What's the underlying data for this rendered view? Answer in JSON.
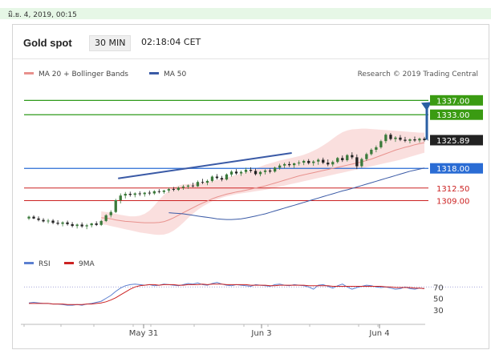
{
  "date_bar": "มิ.ย. 4, 2019, 00:15",
  "header": {
    "title": "Gold spot",
    "interval": "30 MIN",
    "time": "02:18:04 CET"
  },
  "legend": [
    {
      "label": "MA 20 + Bollinger Bands",
      "color": "#e8918d"
    },
    {
      "label": "MA 50",
      "color": "#3a5aa6"
    }
  ],
  "credit": "Research © 2019 Trading Central",
  "chart_data": [
    {
      "type": "candlestick",
      "title": "Gold spot",
      "price_range": [
        1295,
        1342
      ],
      "current_price": 1325.89,
      "levels": [
        {
          "value": 1337.0,
          "label": "1337.00",
          "kind": "resistance",
          "color": "#2e9a1a"
        },
        {
          "value": 1333.0,
          "label": "1333.00",
          "kind": "resistance",
          "color": "#2e9a1a"
        },
        {
          "value": 1318.0,
          "label": "1318.00",
          "kind": "pivot",
          "color": "#2a6cd4"
        },
        {
          "value": 1312.5,
          "label": "1312.50",
          "kind": "support",
          "color": "#cc2222"
        },
        {
          "value": 1309.0,
          "label": "1309.00",
          "kind": "support",
          "color": "#cc2222"
        }
      ],
      "x_ticks": [
        "May 31",
        "Jun 3",
        "Jun 4"
      ],
      "colors": {
        "up": "#3b7a3b",
        "down": "#222222",
        "bb_fill": "#f9d9d8",
        "ma20": "#e8918d",
        "ma50": "#3a5aa6",
        "arrow": "#2a5fa3"
      },
      "candles": [
        [
          1304.0,
          1304.8,
          1303.6,
          1304.5
        ],
        [
          1304.5,
          1304.9,
          1303.8,
          1304.0
        ],
        [
          1304.0,
          1304.6,
          1303.2,
          1303.6
        ],
        [
          1303.6,
          1304.1,
          1302.9,
          1303.2
        ],
        [
          1303.2,
          1303.9,
          1302.6,
          1303.4
        ],
        [
          1303.4,
          1303.8,
          1302.4,
          1302.8
        ],
        [
          1302.8,
          1303.5,
          1302.1,
          1302.5
        ],
        [
          1302.5,
          1303.2,
          1301.8,
          1302.9
        ],
        [
          1302.9,
          1303.4,
          1302.0,
          1302.4
        ],
        [
          1302.4,
          1303.0,
          1301.5,
          1301.9
        ],
        [
          1301.9,
          1302.6,
          1301.2,
          1302.3
        ],
        [
          1302.3,
          1302.9,
          1301.4,
          1301.8
        ],
        [
          1301.8,
          1302.5,
          1301.0,
          1302.1
        ],
        [
          1302.1,
          1302.8,
          1301.5,
          1302.6
        ],
        [
          1302.6,
          1303.2,
          1301.9,
          1302.2
        ],
        [
          1302.2,
          1303.6,
          1301.9,
          1303.3
        ],
        [
          1303.3,
          1305.2,
          1303.0,
          1304.9
        ],
        [
          1304.9,
          1306.3,
          1304.3,
          1305.8
        ],
        [
          1305.8,
          1309.5,
          1305.5,
          1309.1
        ],
        [
          1309.1,
          1311.0,
          1308.2,
          1310.4
        ],
        [
          1310.4,
          1311.4,
          1309.6,
          1310.9
        ],
        [
          1310.9,
          1311.5,
          1310.1,
          1310.6
        ],
        [
          1310.6,
          1311.3,
          1309.9,
          1311.0
        ],
        [
          1311.0,
          1311.6,
          1310.3,
          1310.8
        ],
        [
          1310.8,
          1311.4,
          1310.1,
          1311.2
        ],
        [
          1311.2,
          1311.8,
          1310.5,
          1311.0
        ],
        [
          1311.0,
          1311.9,
          1310.6,
          1311.6
        ],
        [
          1311.6,
          1312.2,
          1311.0,
          1311.4
        ],
        [
          1311.4,
          1312.0,
          1310.9,
          1311.8
        ],
        [
          1311.8,
          1312.6,
          1311.2,
          1312.2
        ],
        [
          1312.2,
          1312.8,
          1311.6,
          1312.0
        ],
        [
          1312.0,
          1312.9,
          1311.7,
          1312.6
        ],
        [
          1312.6,
          1313.4,
          1312.0,
          1312.9
        ],
        [
          1312.9,
          1313.5,
          1312.3,
          1313.2
        ],
        [
          1313.2,
          1314.0,
          1312.7,
          1313.0
        ],
        [
          1313.0,
          1314.6,
          1312.8,
          1314.2
        ],
        [
          1314.2,
          1315.1,
          1313.6,
          1314.0
        ],
        [
          1314.0,
          1314.9,
          1313.3,
          1314.5
        ],
        [
          1314.5,
          1316.0,
          1314.1,
          1315.7
        ],
        [
          1315.7,
          1316.4,
          1314.9,
          1315.3
        ],
        [
          1315.3,
          1315.9,
          1314.4,
          1314.9
        ],
        [
          1314.9,
          1316.6,
          1314.6,
          1316.3
        ],
        [
          1316.3,
          1317.5,
          1315.7,
          1317.1
        ],
        [
          1317.1,
          1317.8,
          1316.2,
          1316.6
        ],
        [
          1316.6,
          1317.4,
          1315.9,
          1317.0
        ],
        [
          1317.0,
          1318.2,
          1316.5,
          1317.6
        ],
        [
          1317.6,
          1318.3,
          1316.8,
          1317.3
        ],
        [
          1317.3,
          1317.9,
          1316.0,
          1316.4
        ],
        [
          1316.4,
          1317.3,
          1315.8,
          1317.0
        ],
        [
          1317.0,
          1317.8,
          1316.3,
          1317.4
        ],
        [
          1317.4,
          1318.0,
          1316.6,
          1317.1
        ],
        [
          1317.1,
          1318.5,
          1316.8,
          1318.2
        ],
        [
          1318.2,
          1319.3,
          1317.6,
          1318.8
        ],
        [
          1318.8,
          1319.6,
          1318.0,
          1319.2
        ],
        [
          1319.2,
          1319.9,
          1318.4,
          1318.9
        ],
        [
          1318.9,
          1319.6,
          1318.1,
          1319.4
        ],
        [
          1319.4,
          1320.2,
          1318.8,
          1319.6
        ],
        [
          1319.6,
          1320.4,
          1318.9,
          1320.1
        ],
        [
          1320.1,
          1320.6,
          1319.1,
          1319.5
        ],
        [
          1319.5,
          1320.3,
          1318.7,
          1319.9
        ],
        [
          1319.9,
          1320.8,
          1319.0,
          1320.4
        ],
        [
          1320.4,
          1321.0,
          1319.2,
          1319.6
        ],
        [
          1319.6,
          1320.5,
          1318.6,
          1319.1
        ],
        [
          1319.1,
          1320.2,
          1318.5,
          1319.8
        ],
        [
          1319.8,
          1321.2,
          1319.4,
          1320.9
        ],
        [
          1320.9,
          1321.6,
          1319.8,
          1320.3
        ],
        [
          1320.3,
          1322.0,
          1319.9,
          1321.7
        ],
        [
          1321.7,
          1322.5,
          1320.6,
          1321.1
        ],
        [
          1321.1,
          1321.9,
          1317.8,
          1318.6
        ],
        [
          1318.6,
          1321.0,
          1318.2,
          1320.6
        ],
        [
          1320.6,
          1322.4,
          1320.1,
          1322.0
        ],
        [
          1322.0,
          1323.6,
          1321.6,
          1323.2
        ],
        [
          1323.2,
          1324.4,
          1322.5,
          1323.9
        ],
        [
          1323.9,
          1326.0,
          1323.5,
          1325.6
        ],
        [
          1325.6,
          1327.8,
          1325.0,
          1327.4
        ],
        [
          1327.4,
          1327.9,
          1325.8,
          1326.2
        ],
        [
          1326.2,
          1327.0,
          1325.4,
          1326.6
        ],
        [
          1326.6,
          1327.3,
          1325.6,
          1326.0
        ],
        [
          1326.0,
          1326.8,
          1325.3,
          1325.7
        ],
        [
          1325.7,
          1326.4,
          1325.0,
          1326.1
        ],
        [
          1326.1,
          1326.9,
          1325.4,
          1325.8
        ],
        [
          1325.8,
          1326.6,
          1325.2,
          1326.3
        ],
        [
          1326.3,
          1326.8,
          1325.5,
          1325.89
        ]
      ],
      "ma20": [
        1304.2,
        1304.1,
        1303.9,
        1303.6,
        1303.4,
        1303.2,
        1303.1,
        1303.0,
        1302.9,
        1302.8,
        1302.8,
        1302.8,
        1302.9,
        1303.1,
        1303.6,
        1304.2,
        1304.9,
        1305.6,
        1306.3,
        1307.0,
        1307.7,
        1308.3,
        1308.9,
        1309.5,
        1310.0,
        1310.4,
        1310.8,
        1311.1,
        1311.4,
        1311.6,
        1311.9,
        1312.2,
        1312.5,
        1312.8,
        1313.1,
        1313.5,
        1313.9,
        1314.3,
        1314.7,
        1315.1,
        1315.5,
        1315.9,
        1316.2,
        1316.5,
        1316.8,
        1317.1,
        1317.4,
        1317.7,
        1318.0,
        1318.3,
        1318.6,
        1318.9,
        1319.2,
        1319.5,
        1319.8,
        1320.2,
        1320.6,
        1321.1,
        1321.6,
        1322.1,
        1322.6,
        1323.1,
        1323.5,
        1323.9,
        1324.2,
        1324.6,
        1324.9,
        1325.2
      ],
      "bb_upper": [
        1306.0,
        1305.8,
        1305.6,
        1305.3,
        1305.0,
        1304.8,
        1304.6,
        1304.6,
        1304.8,
        1305.3,
        1306.2,
        1307.6,
        1309.2,
        1310.6,
        1311.8,
        1312.7,
        1313.2,
        1313.5,
        1313.6,
        1313.7,
        1313.8,
        1314.0,
        1314.2,
        1314.5,
        1314.8,
        1315.1,
        1315.4,
        1315.8,
        1316.2,
        1316.6,
        1317.0,
        1317.5,
        1318.0,
        1318.5,
        1319.0,
        1319.4,
        1319.8,
        1320.2,
        1320.5,
        1320.8,
        1321.1,
        1321.4,
        1321.8,
        1322.3,
        1322.9,
        1323.6,
        1324.4,
        1325.3,
        1326.3,
        1327.3,
        1328.1,
        1328.6,
        1328.9,
        1329.0,
        1329.1,
        1329.1,
        1329.0,
        1328.9,
        1328.8,
        1328.7,
        1328.6,
        1328.5,
        1328.4,
        1328.3,
        1328.2,
        1328.1,
        1328.0,
        1328.0
      ],
      "bb_lower": [
        1302.4,
        1302.2,
        1301.9,
        1301.6,
        1301.3,
        1301.0,
        1300.7,
        1300.4,
        1300.1,
        1299.9,
        1299.7,
        1299.5,
        1299.4,
        1299.5,
        1299.9,
        1300.6,
        1301.6,
        1302.8,
        1304.1,
        1305.3,
        1306.4,
        1307.3,
        1308.1,
        1308.8,
        1309.3,
        1309.8,
        1310.2,
        1310.5,
        1310.8,
        1311.0,
        1311.2,
        1311.4,
        1311.6,
        1311.8,
        1312.0,
        1312.3,
        1312.6,
        1312.9,
        1313.2,
        1313.5,
        1313.8,
        1314.1,
        1314.4,
        1314.7,
        1315.0,
        1315.3,
        1315.6,
        1315.9,
        1316.2,
        1316.5,
        1316.8,
        1317.1,
        1317.4,
        1317.7,
        1318.0,
        1318.3,
        1318.6,
        1318.9,
        1319.2,
        1319.5,
        1319.8,
        1320.1,
        1320.4,
        1320.8,
        1321.2,
        1321.6,
        1322.0,
        1322.4
      ],
      "ma50": [
        1305.6,
        1305.5,
        1305.4,
        1305.3,
        1305.1,
        1304.9,
        1304.7,
        1304.5,
        1304.3,
        1304.1,
        1303.9,
        1303.8,
        1303.7,
        1303.7,
        1303.8,
        1303.9,
        1304.1,
        1304.4,
        1304.7,
        1305.0,
        1305.3,
        1305.7,
        1306.1,
        1306.5,
        1306.9,
        1307.3,
        1307.7,
        1308.1,
        1308.5,
        1308.9,
        1309.3,
        1309.7,
        1310.1,
        1310.5,
        1310.9,
        1311.3,
        1311.7,
        1312.0,
        1312.4,
        1312.8,
        1313.2,
        1313.6,
        1314.0,
        1314.4,
        1314.8,
        1315.2,
        1315.6,
        1316.0,
        1316.4,
        1316.8,
        1317.2,
        1317.5,
        1317.8,
        1318.1
      ],
      "trend_line": [
        [
          18.5,
          1315.2
        ],
        [
          54.5,
          1322.3
        ],
        [
          56.0,
          1326.0
        ],
        [
          56.0,
          1326.0
        ]
      ],
      "rsi": {
        "ylim": [
          10,
          90
        ],
        "ticks": [
          70,
          50,
          30
        ],
        "overbought": 70,
        "values": [
          42,
          43,
          42,
          41,
          41,
          40,
          40,
          39,
          38,
          38,
          39,
          38,
          40,
          41,
          43,
          45,
          50,
          55,
          62,
          68,
          72,
          74,
          75,
          74,
          73,
          74,
          72,
          73,
          75,
          74,
          73,
          72,
          74,
          76,
          75,
          77,
          74,
          73,
          76,
          78,
          75,
          73,
          72,
          74,
          73,
          72,
          71,
          74,
          73,
          72,
          71,
          74,
          75,
          73,
          72,
          74,
          73,
          72,
          70,
          66,
          73,
          74,
          71,
          68,
          72,
          75,
          70,
          66,
          69,
          71,
          73,
          72,
          70,
          69,
          70,
          68,
          66,
          67,
          70,
          67,
          66,
          68,
          67
        ],
        "ma9": [
          41,
          41,
          41,
          41,
          41,
          40,
          40,
          40,
          39,
          39,
          39,
          39,
          40,
          40,
          41,
          42,
          44,
          47,
          51,
          56,
          61,
          66,
          70,
          72,
          73,
          74,
          74,
          73,
          74,
          74,
          74,
          73,
          73,
          74,
          74,
          74,
          75,
          74,
          75,
          75,
          75,
          74,
          74,
          74,
          74,
          74,
          73,
          73,
          73,
          73,
          72,
          72,
          73,
          73,
          73,
          73,
          73,
          73,
          72,
          72,
          72,
          72,
          72,
          71,
          71,
          71,
          71,
          71,
          71,
          71,
          71,
          71,
          71,
          71,
          70,
          70,
          69,
          69,
          69,
          69,
          68,
          68,
          67
        ]
      },
      "rsi_legend": [
        {
          "label": "RSI",
          "color": "#5b7fd0"
        },
        {
          "label": "9MA",
          "color": "#cc2222"
        }
      ]
    }
  ]
}
